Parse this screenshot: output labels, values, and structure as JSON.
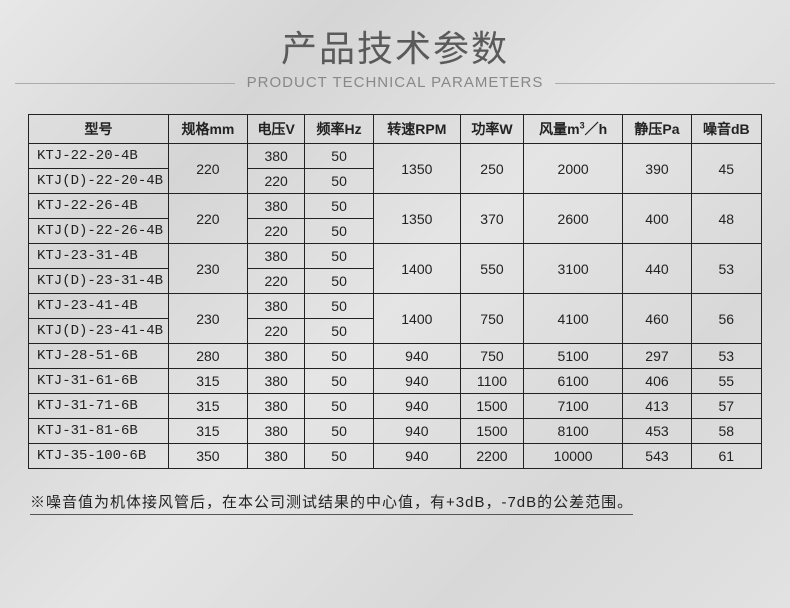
{
  "header": {
    "title_cn": "产品技术参数",
    "title_en": "PRODUCT TECHNICAL PARAMETERS"
  },
  "table": {
    "columns": [
      "型号",
      "规格mm",
      "电压V",
      "频率Hz",
      "转速RPM",
      "功率W",
      "风量m³／h",
      "静压Pa",
      "噪音dB"
    ],
    "groups": [
      {
        "models": [
          "KTJ-22-20-4B",
          "KTJ(D)-22-20-4B"
        ],
        "spec": "220",
        "voltage": [
          "380",
          "220"
        ],
        "freq": [
          "50",
          "50"
        ],
        "rpm": "1350",
        "power": "250",
        "airflow": "2000",
        "static": "390",
        "noise": "45"
      },
      {
        "models": [
          "KTJ-22-26-4B",
          "KTJ(D)-22-26-4B"
        ],
        "spec": "220",
        "voltage": [
          "380",
          "220"
        ],
        "freq": [
          "50",
          "50"
        ],
        "rpm": "1350",
        "power": "370",
        "airflow": "2600",
        "static": "400",
        "noise": "48"
      },
      {
        "models": [
          "KTJ-23-31-4B",
          "KTJ(D)-23-31-4B"
        ],
        "spec": "230",
        "voltage": [
          "380",
          "220"
        ],
        "freq": [
          "50",
          "50"
        ],
        "rpm": "1400",
        "power": "550",
        "airflow": "3100",
        "static": "440",
        "noise": "53"
      },
      {
        "models": [
          "KTJ-23-41-4B",
          "KTJ(D)-23-41-4B"
        ],
        "spec": "230",
        "voltage": [
          "380",
          "220"
        ],
        "freq": [
          "50",
          "50"
        ],
        "rpm": "1400",
        "power": "750",
        "airflow": "4100",
        "static": "460",
        "noise": "56"
      }
    ],
    "singles": [
      {
        "model": "KTJ-28-51-6B",
        "spec": "280",
        "voltage": "380",
        "freq": "50",
        "rpm": "940",
        "power": "750",
        "airflow": "5100",
        "static": "297",
        "noise": "53"
      },
      {
        "model": "KTJ-31-61-6B",
        "spec": "315",
        "voltage": "380",
        "freq": "50",
        "rpm": "940",
        "power": "1100",
        "airflow": "6100",
        "static": "406",
        "noise": "55"
      },
      {
        "model": "KTJ-31-71-6B",
        "spec": "315",
        "voltage": "380",
        "freq": "50",
        "rpm": "940",
        "power": "1500",
        "airflow": "7100",
        "static": "413",
        "noise": "57"
      },
      {
        "model": "KTJ-31-81-6B",
        "spec": "315",
        "voltage": "380",
        "freq": "50",
        "rpm": "940",
        "power": "1500",
        "airflow": "8100",
        "static": "453",
        "noise": "58"
      },
      {
        "model": "KTJ-35-100-6B",
        "spec": "350",
        "voltage": "380",
        "freq": "50",
        "rpm": "940",
        "power": "2200",
        "airflow": "10000",
        "static": "543",
        "noise": "61"
      }
    ]
  },
  "footnote": "※噪音值为机体接风管后，在本公司测试结果的中心值，有+3dB，-7dB的公差范围。"
}
